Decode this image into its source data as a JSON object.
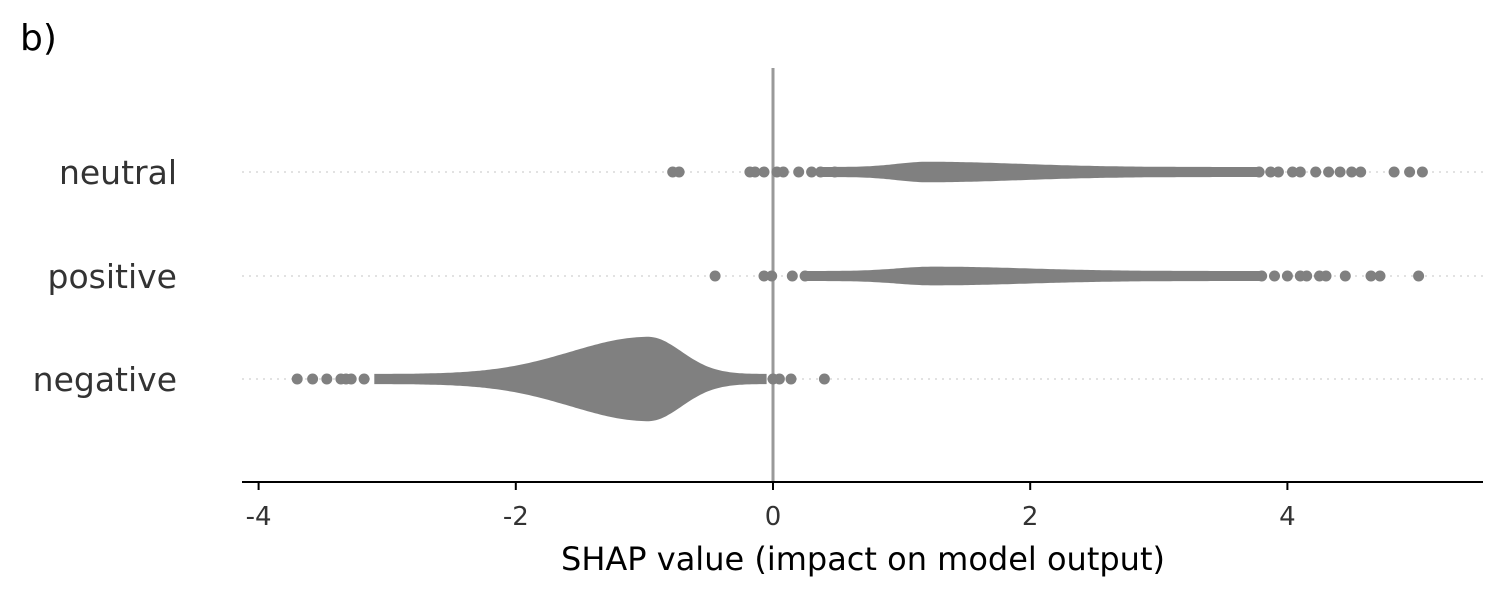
{
  "chart_data": {
    "type": "scatter",
    "subtype": "beeswarm",
    "panel_label": "b)",
    "xlabel": "SHAP value (impact on model output)",
    "ylabel": "",
    "xlim": [
      -4.1,
      5.5
    ],
    "xticks": [
      -4,
      -2,
      0,
      2,
      4
    ],
    "xtick_labels": [
      "-4",
      "-2",
      "0",
      "2",
      "4"
    ],
    "zero_line": 0,
    "grid": "dotted horizontal guide per category",
    "colors": {
      "points": "#808080",
      "zero_line": "#999999",
      "axis": "#000000",
      "guide": "#d9d9d9"
    },
    "categories": [
      "neutral",
      "positive",
      "negative"
    ],
    "series": [
      {
        "category": "neutral",
        "outliers": [
          -0.78,
          -0.73,
          -0.18,
          -0.14,
          -0.07,
          0.03,
          0.08,
          0.2,
          0.3,
          0.37,
          0.48,
          3.78,
          3.87,
          3.93,
          4.04,
          4.1,
          4.22,
          4.32,
          4.41,
          4.5,
          4.57,
          4.83,
          4.95,
          5.05
        ],
        "dense_range": [
          0.37,
          3.78
        ],
        "density_mode": 1.2,
        "max_spread": 0.12
      },
      {
        "category": "positive",
        "outliers": [
          -0.45,
          -0.07,
          -0.01,
          0.15,
          0.25,
          3.8,
          3.9,
          4.0,
          4.1,
          4.15,
          4.25,
          4.3,
          4.45,
          4.65,
          4.72,
          5.02
        ],
        "dense_range": [
          0.25,
          3.8
        ],
        "density_mode": 1.25,
        "max_spread": 0.1
      },
      {
        "category": "negative",
        "outliers": [
          -3.7,
          -3.58,
          -3.47,
          -3.36,
          -3.32,
          -3.28,
          -3.18,
          0.0,
          0.05,
          0.14,
          0.4
        ],
        "dense_range": [
          -3.1,
          -0.05
        ],
        "density_mode": -0.97,
        "max_spread": 0.85
      }
    ]
  }
}
